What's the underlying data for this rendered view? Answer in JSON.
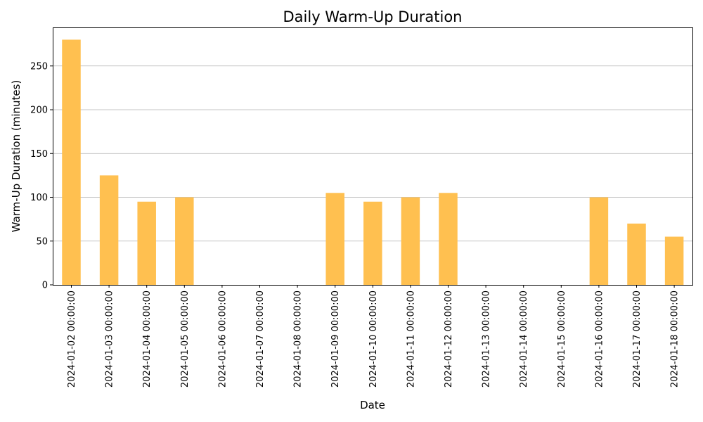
{
  "chart_data": {
    "type": "bar",
    "title": "Daily Warm-Up Duration",
    "xlabel": "Date",
    "ylabel": "Warm-Up Duration (minutes)",
    "categories": [
      "2024-01-02 00:00:00",
      "2024-01-03 00:00:00",
      "2024-01-04 00:00:00",
      "2024-01-05 00:00:00",
      "2024-01-06 00:00:00",
      "2024-01-07 00:00:00",
      "2024-01-08 00:00:00",
      "2024-01-09 00:00:00",
      "2024-01-10 00:00:00",
      "2024-01-11 00:00:00",
      "2024-01-12 00:00:00",
      "2024-01-13 00:00:00",
      "2024-01-14 00:00:00",
      "2024-01-15 00:00:00",
      "2024-01-16 00:00:00",
      "2024-01-17 00:00:00",
      "2024-01-18 00:00:00"
    ],
    "values": [
      280,
      125,
      95,
      100,
      0,
      0,
      0,
      105,
      95,
      100,
      105,
      0,
      0,
      0,
      100,
      70,
      55
    ],
    "ylim": [
      0,
      294
    ],
    "yticks": [
      0,
      50,
      100,
      150,
      200,
      250
    ],
    "grid": "y",
    "bar_color": "#FFC050"
  }
}
